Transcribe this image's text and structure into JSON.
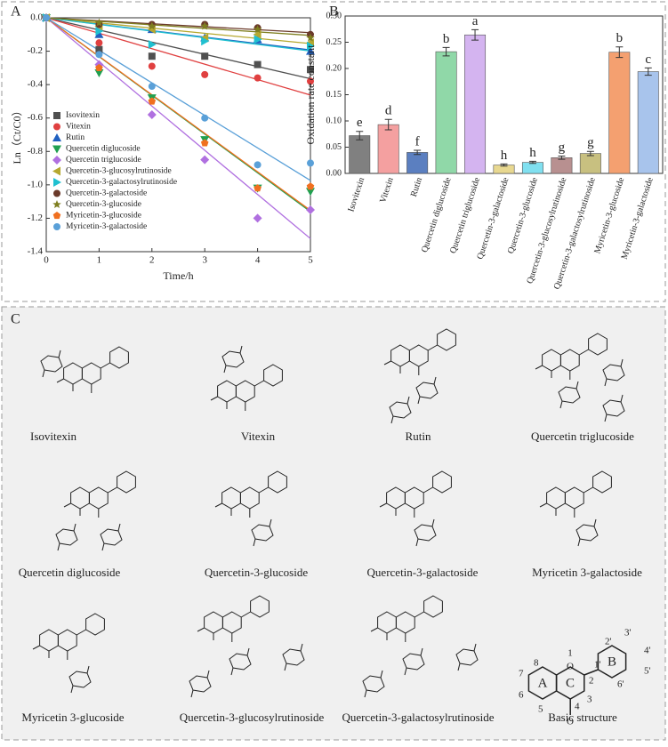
{
  "chart_data": [
    {
      "type": "scatter",
      "panel_label": "A",
      "x_label": "Time/h",
      "y_label": "Ln（Ct/C0）",
      "x": [
        0,
        1,
        2,
        3,
        4,
        5
      ],
      "xlim": [
        0,
        5
      ],
      "xticks": [
        0,
        1,
        2,
        3,
        4,
        5
      ],
      "ylim": [
        -1.4,
        0
      ],
      "yticks": [
        {
          "value": 0,
          "label": "0.0"
        },
        -0.2,
        -0.4,
        -0.6,
        -0.8,
        {
          "value": -1,
          "label": "-1.0"
        },
        -1.2,
        -1.4
      ],
      "fit_lines": true,
      "series": [
        {
          "name": "Isovitexin",
          "color": "#505050",
          "marker": "square",
          "values": [
            0,
            -0.19,
            -0.23,
            -0.23,
            -0.28,
            -0.31
          ]
        },
        {
          "name": "Vitexin",
          "color": "#e04040",
          "marker": "circle",
          "values": [
            0,
            -0.15,
            -0.29,
            -0.34,
            -0.36,
            -0.38
          ]
        },
        {
          "name": "Rutin",
          "color": "#2060c0",
          "marker": "triangle-up",
          "values": [
            0,
            -0.1,
            -0.07,
            -0.12,
            -0.13,
            -0.2
          ]
        },
        {
          "name": "Quercetin diglucoside",
          "color": "#20a050",
          "marker": "triangle-down",
          "values": [
            0,
            -0.33,
            -0.48,
            -0.73,
            -1.02,
            -1.04
          ]
        },
        {
          "name": "Quercetin triglucoside",
          "color": "#b070e0",
          "marker": "diamond",
          "values": [
            0,
            -0.28,
            -0.58,
            -0.85,
            -1.2,
            -1.15
          ]
        },
        {
          "name": "Quercetin-3-glucosylrutinoside",
          "color": "#b5a830",
          "marker": "triangle-left",
          "values": [
            0,
            -0.05,
            -0.07,
            -0.12,
            -0.1,
            -0.15
          ]
        },
        {
          "name": "Quercetin-3-galactosylrutinoside",
          "color": "#20c0d0",
          "marker": "triangle-right",
          "values": [
            0,
            -0.08,
            -0.16,
            -0.14,
            -0.13,
            -0.17
          ]
        },
        {
          "name": "Quercetin-3-galactoside",
          "color": "#6b3a2a",
          "marker": "circle",
          "values": [
            0,
            -0.04,
            -0.04,
            -0.04,
            -0.06,
            -0.1
          ]
        },
        {
          "name": "Quercetin-3-glucoside",
          "color": "#7f7f20",
          "marker": "star",
          "values": [
            0,
            -0.03,
            -0.05,
            -0.05,
            -0.07,
            -0.12
          ]
        },
        {
          "name": "Myricetin-3-glucoside",
          "color": "#f07020",
          "marker": "pentagon",
          "values": [
            0,
            -0.3,
            -0.5,
            -0.75,
            -1.02,
            -1.01
          ]
        },
        {
          "name": "Myricetin-3-galactoside",
          "color": "#5aa0d8",
          "marker": "circle",
          "values": [
            0,
            -0.22,
            -0.41,
            -0.6,
            -0.88,
            -0.87
          ]
        }
      ]
    },
    {
      "type": "bar",
      "panel_label": "B",
      "y_label": "Oxidation rate constant",
      "categories": [
        "Isovitexin",
        "Vitexin",
        "Rutin",
        "Quercetin diglucoside",
        "Quercetin triglucoside",
        "Quercetin-3-galactoside",
        "Quercetin-3-glucoside",
        "Quercetin-3-glucosylrutinoside",
        "Quercetin-3-galactosylrutinoside",
        "Myricetin-3-glucoside",
        "Myricetin-3-galactoside"
      ],
      "values": [
        0.072,
        0.093,
        0.04,
        0.232,
        0.264,
        0.016,
        0.021,
        0.03,
        0.038,
        0.231,
        0.194
      ],
      "errors": [
        0.008,
        0.01,
        0.004,
        0.008,
        0.01,
        0.002,
        0.002,
        0.003,
        0.004,
        0.01,
        0.007
      ],
      "letters": [
        "e",
        "d",
        "f",
        "b",
        "a",
        "h",
        "h",
        "g",
        "g",
        "b",
        "c"
      ],
      "colors": [
        "#808080",
        "#f4a0a0",
        "#5b7fc0",
        "#90d8a8",
        "#d4b4f0",
        "#e8d890",
        "#80e0f0",
        "#b89090",
        "#c8c080",
        "#f4a070",
        "#a8c4ec"
      ],
      "ylim": [
        0,
        0.3
      ],
      "yticks": [
        {
          "value": 0,
          "label": "0.00"
        },
        {
          "value": 0.05,
          "label": "0.05"
        },
        {
          "value": 0.1,
          "label": "0.10"
        },
        {
          "value": 0.15,
          "label": "0.15"
        },
        {
          "value": 0.2,
          "label": "0.20"
        },
        {
          "value": 0.25,
          "label": "0.25"
        },
        {
          "value": 0.3,
          "label": "0.30"
        }
      ]
    }
  ],
  "panel_c": {
    "label": "C",
    "compounds": [
      "Isovitexin",
      "Vitexin",
      "Rutin",
      "Quercetin triglucoside",
      "Quercetin diglucoside",
      "Quercetin-3-glucoside",
      "Quercetin-3-galactoside",
      "Myricetin 3-galactoside",
      "Myricetin 3-glucoside",
      "Quercetin-3-glucosylrutinoside",
      "Quercetin-3-galactosylrutinoside",
      "Basic structure"
    ],
    "basic_labels": [
      "8",
      "1",
      "O",
      "2'",
      "3'",
      "4'",
      "5'",
      "6'",
      "1'",
      "7",
      "6",
      "5",
      "4",
      "3",
      "2",
      "A",
      "C",
      "B",
      "O"
    ]
  }
}
